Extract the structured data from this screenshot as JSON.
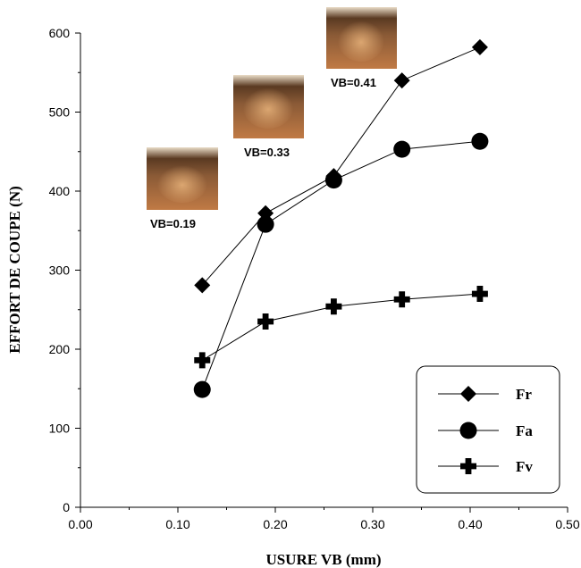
{
  "chart_data": {
    "type": "line",
    "xlabel": "USURE VB (mm)",
    "ylabel": "EFFORT DE COUPE (N)",
    "xlim": [
      0.0,
      0.5
    ],
    "ylim": [
      0,
      600
    ],
    "x_ticks": [
      "0.00",
      "0.10",
      "0.20",
      "0.30",
      "0.40",
      "0.50"
    ],
    "y_ticks": [
      "0",
      "100",
      "200",
      "300",
      "400",
      "500",
      "600"
    ],
    "grid": false,
    "legend_position": "bottom-right",
    "series": [
      {
        "name": "Fr",
        "marker": "diamond",
        "x": [
          0.125,
          0.19,
          0.26,
          0.33,
          0.41
        ],
        "y": [
          281,
          372,
          419,
          540,
          582
        ]
      },
      {
        "name": "Fa",
        "marker": "circle",
        "x": [
          0.125,
          0.19,
          0.26,
          0.33,
          0.41
        ],
        "y": [
          149,
          358,
          414,
          453,
          463
        ]
      },
      {
        "name": "Fv",
        "marker": "plus",
        "x": [
          0.125,
          0.19,
          0.26,
          0.33,
          0.41
        ],
        "y": [
          186,
          235,
          254,
          263,
          270
        ]
      }
    ],
    "annotations": [
      {
        "label": "VB=0.19"
      },
      {
        "label": "VB=0.33"
      },
      {
        "label": "VB=0.41"
      }
    ]
  }
}
